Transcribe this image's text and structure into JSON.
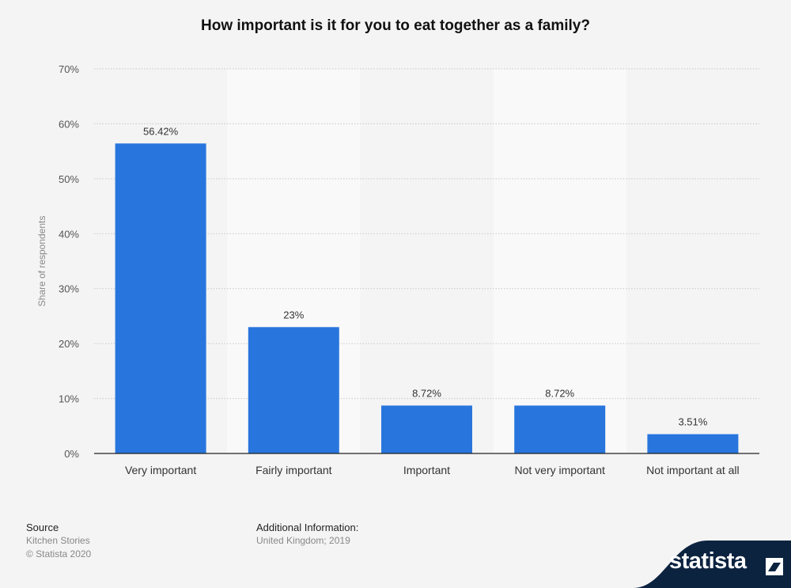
{
  "chart_data": {
    "type": "bar",
    "title": "How important is it for you to eat together as a family?",
    "categories": [
      "Very important",
      "Fairly important",
      "Important",
      "Not very important",
      "Not important at all"
    ],
    "values": [
      56.42,
      23,
      8.72,
      8.72,
      3.51
    ],
    "value_labels": [
      "56.42%",
      "23%",
      "8.72%",
      "8.72%",
      "3.51%"
    ],
    "ylabel": "Share of respondents",
    "xlabel": "",
    "ylim": [
      0,
      70
    ],
    "yticks": [
      0,
      10,
      20,
      30,
      40,
      50,
      60,
      70
    ],
    "ytick_labels": [
      "0%",
      "10%",
      "20%",
      "30%",
      "40%",
      "50%",
      "60%",
      "70%"
    ],
    "grid": true,
    "bar_color": "#2876dd"
  },
  "footer": {
    "source_heading": "Source",
    "source_lines": [
      "Kitchen Stories",
      "© Statista 2020"
    ],
    "additional_heading": "Additional Information:",
    "additional_text": "United Kingdom; 2019"
  },
  "brand": {
    "name": "statista",
    "colors": {
      "dark": "#0c2340",
      "accent": "#2876dd"
    }
  }
}
